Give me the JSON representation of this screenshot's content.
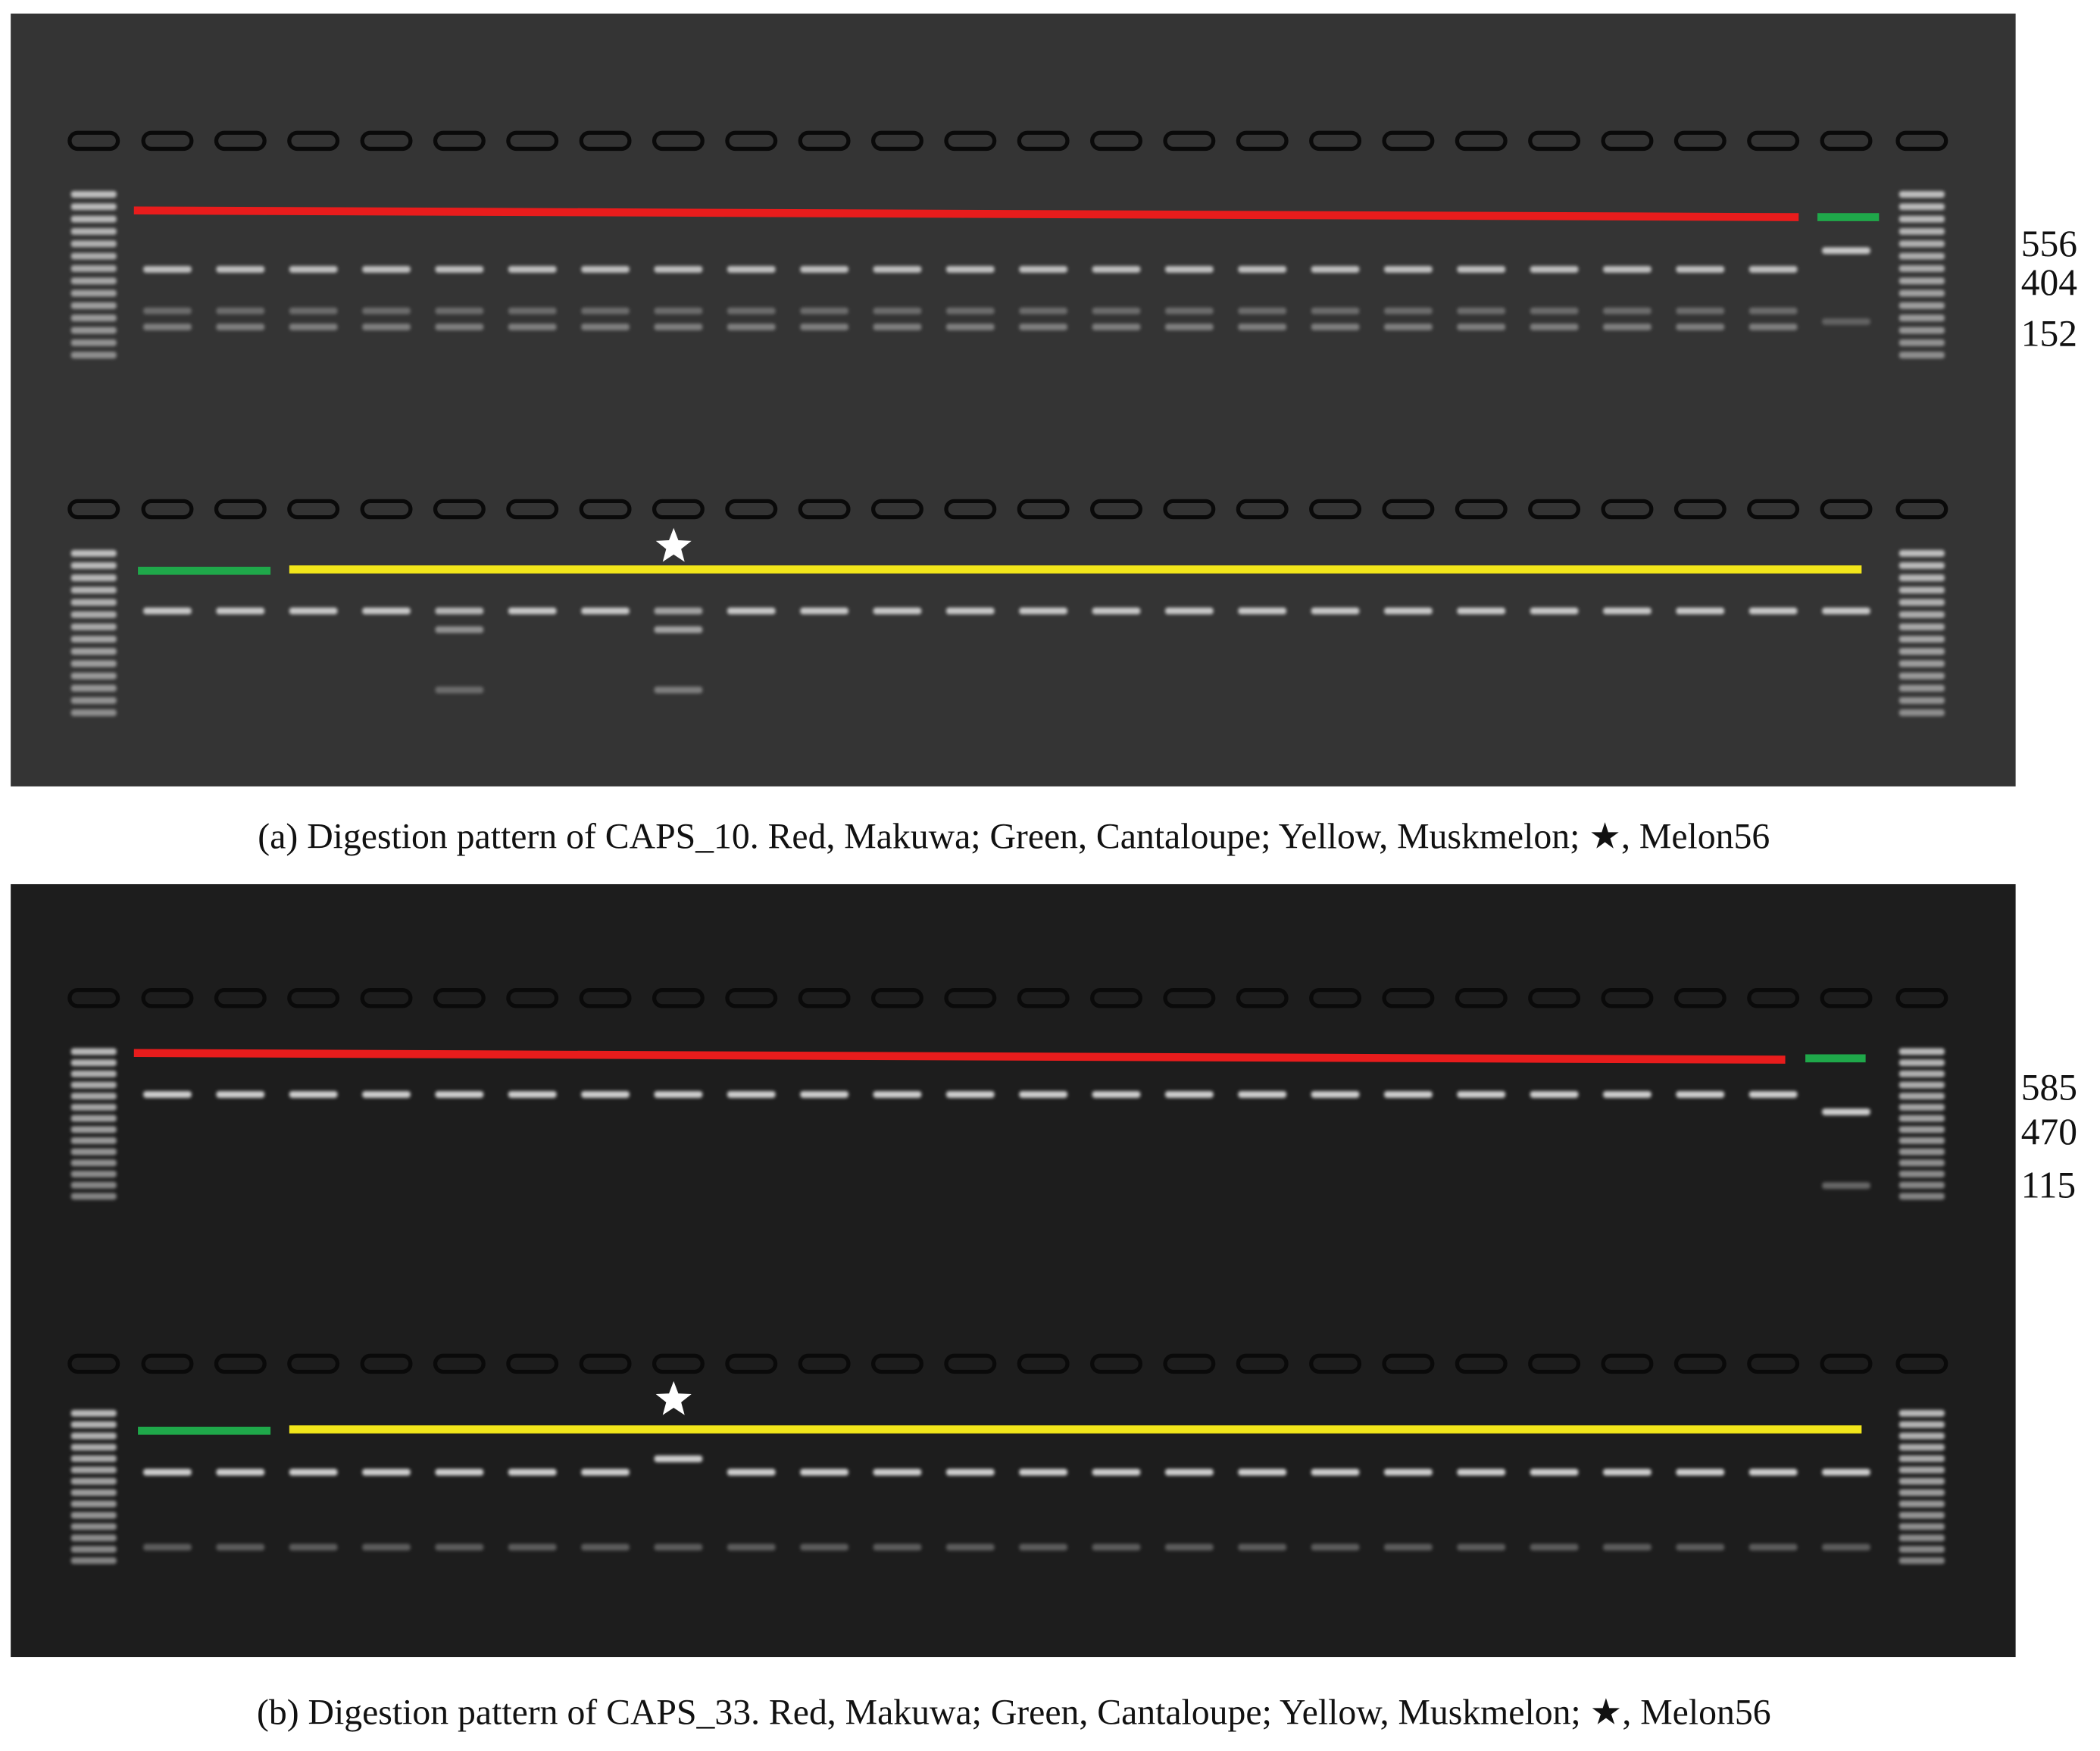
{
  "panels": [
    {
      "caption": "(a) Digestion pattern of CAPS_10. Red, Makuwa; Green, Cantaloupe; Yellow, Muskmelon; ★, Melon56",
      "size_labels": [
        556,
        404,
        152
      ]
    },
    {
      "caption": "(b) Digestion pattern of CAPS_33. Red, Makuwa; Green, Cantaloupe; Yellow, Muskmelon; ★, Melon56",
      "size_labels": [
        585,
        470,
        115
      ]
    }
  ]
}
